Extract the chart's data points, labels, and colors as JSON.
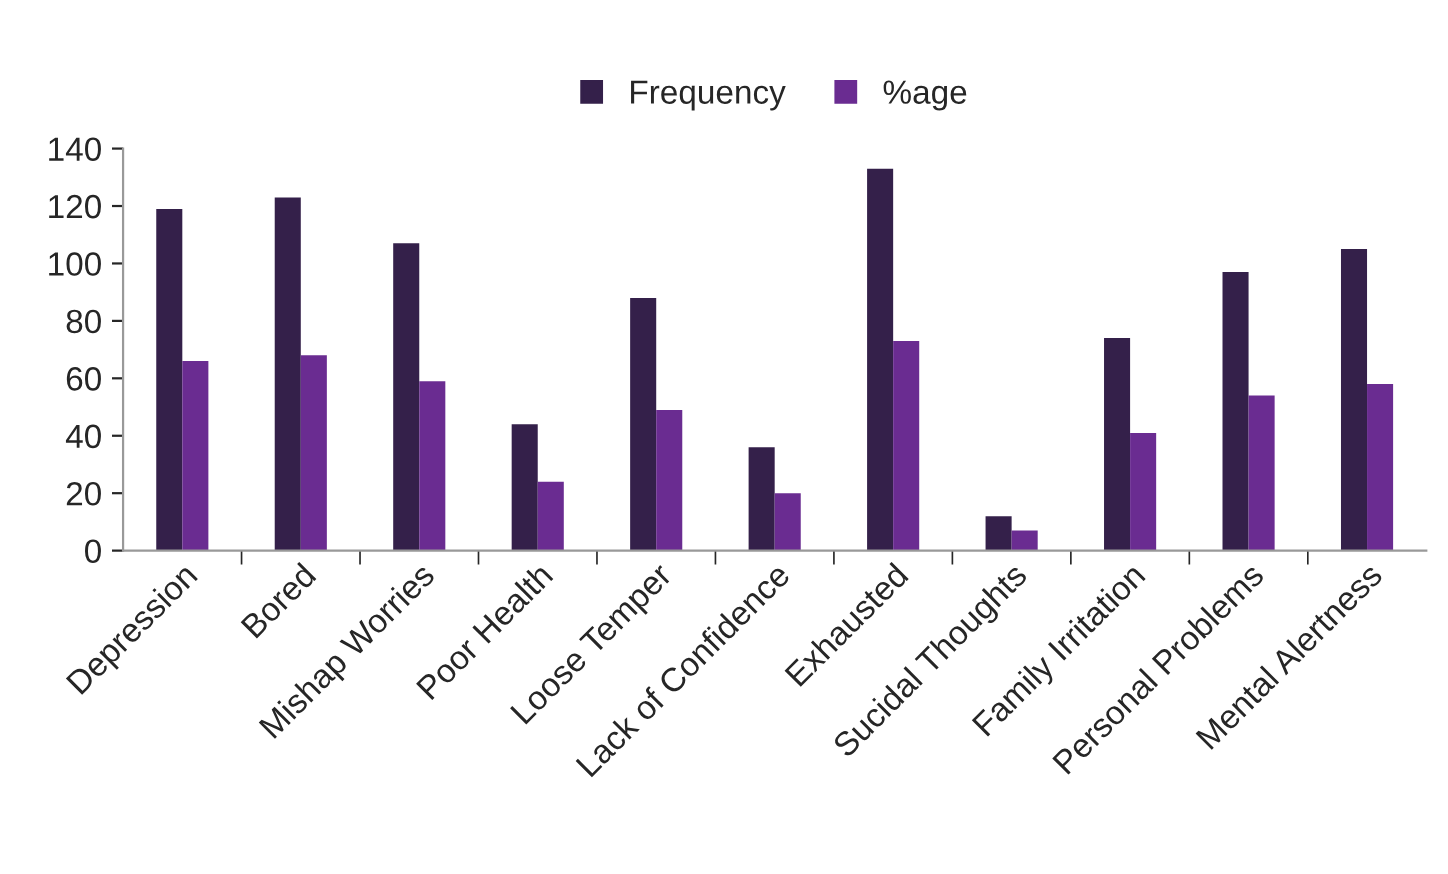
{
  "chart_data": {
    "type": "bar",
    "categories": [
      "Depression",
      "Bored",
      "Mishap Worries",
      "Poor Health",
      "Loose Temper",
      "Lack of Confidence",
      "Exhausted",
      "Sucidal Thoughts",
      "Family Irritation",
      "Personal Problems",
      "Mental Alertness"
    ],
    "series": [
      {
        "name": "Frequency",
        "color": "#34204a",
        "values": [
          119,
          123,
          107,
          44,
          88,
          36,
          133,
          12,
          74,
          97,
          105
        ]
      },
      {
        "name": "%age",
        "color": "#6a2c91",
        "values": [
          66,
          68,
          59,
          24,
          49,
          20,
          73,
          7,
          41,
          54,
          58
        ]
      }
    ],
    "ylim": [
      0,
      140
    ],
    "yticks": [
      0,
      20,
      40,
      60,
      80,
      100,
      120,
      140
    ],
    "grid": false,
    "legend": "top"
  }
}
